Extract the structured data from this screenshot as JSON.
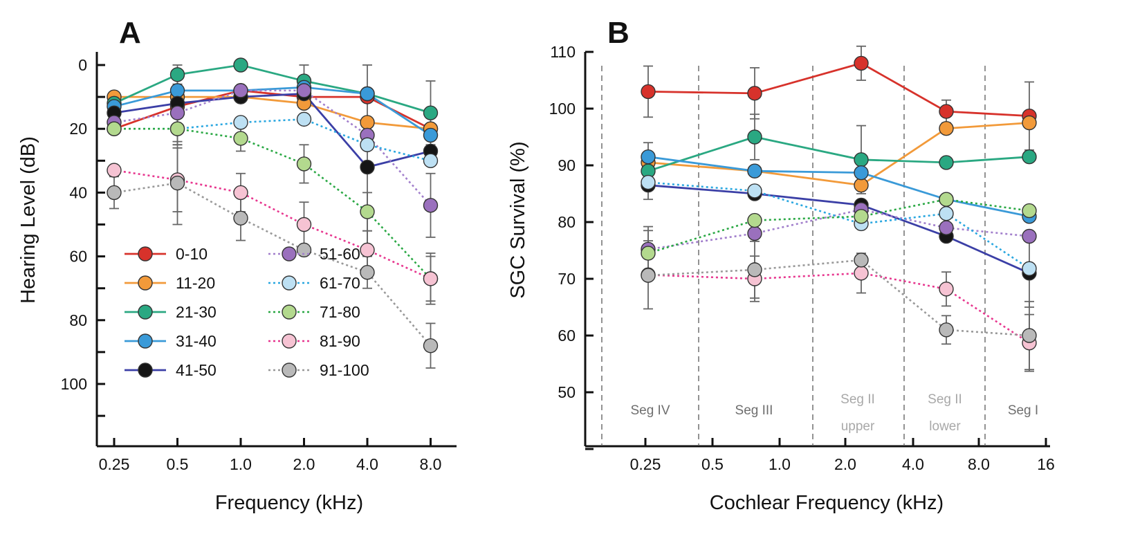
{
  "figure": {
    "colors": {
      "0-10": "#d7322b",
      "11-20": "#f29a3a",
      "21-30": "#2aa882",
      "31-40": "#3a9ad8",
      "41-50": "#151515",
      "51-60": "#9a70bd",
      "61-70": "#bde0f3",
      "71-80": "#b3d98e",
      "81-90": "#f6c3d3",
      "91-100": "#b9b9b9"
    },
    "line_colors": {
      "41-50": "#3b3fa6",
      "51-60": "#a27fcc",
      "61-70": "#2aa7e0",
      "71-80": "#2aa844",
      "81-90": "#e7378f",
      "91-100": "#999999"
    }
  },
  "chart_data": [
    {
      "panel": "A",
      "type": "line",
      "xlabel": "Frequency (kHz)",
      "ylabel": "Hearing Level (dB)",
      "x_ticks": [
        "0.25",
        "0.5",
        "1.0",
        "2.0",
        "4.0",
        "8.0"
      ],
      "y_ticks": [
        "0",
        "20",
        "40",
        "60",
        "80",
        "100"
      ],
      "ylim": [
        0,
        120
      ],
      "y_inverted": true,
      "legend": {
        "placement": "lower-left",
        "columns": 2
      },
      "series": [
        {
          "name": "0-10",
          "style": "solid",
          "values": [
            20,
            13,
            8,
            10,
            10,
            20
          ],
          "err": [
            0,
            0,
            0,
            0,
            0,
            0
          ]
        },
        {
          "name": "11-20",
          "style": "solid",
          "values": [
            10,
            10,
            10,
            12,
            18,
            20
          ],
          "err": [
            0,
            0,
            0,
            0,
            0,
            0
          ]
        },
        {
          "name": "21-30",
          "style": "solid",
          "values": [
            12,
            3,
            0,
            5,
            9,
            15
          ],
          "err": [
            0,
            3,
            0,
            5,
            0,
            10
          ]
        },
        {
          "name": "31-40",
          "style": "solid",
          "values": [
            13,
            8,
            8,
            7,
            9,
            22
          ],
          "err": [
            0,
            0,
            0,
            0,
            0,
            0
          ]
        },
        {
          "name": "41-50",
          "style": "solid",
          "values": [
            15,
            12,
            10,
            9,
            32,
            27
          ],
          "err": [
            0,
            0,
            0,
            0,
            32,
            0
          ]
        },
        {
          "name": "51-60",
          "style": "dotted",
          "values": [
            18,
            15,
            8,
            8,
            22,
            44
          ],
          "err": [
            0,
            0,
            0,
            0,
            0,
            10
          ]
        },
        {
          "name": "61-70",
          "style": "dotted",
          "values": [
            20,
            20,
            18,
            17,
            25,
            30
          ],
          "err": [
            0,
            5,
            0,
            0,
            0,
            0
          ]
        },
        {
          "name": "71-80",
          "style": "dotted",
          "values": [
            20,
            20,
            23,
            31,
            46,
            67
          ],
          "err": [
            0,
            5,
            4,
            6,
            6,
            7
          ]
        },
        {
          "name": "81-90",
          "style": "dotted",
          "values": [
            33,
            36,
            40,
            50,
            58,
            67
          ],
          "err": [
            0,
            10,
            6,
            7,
            6,
            8
          ]
        },
        {
          "name": "91-100",
          "style": "dotted",
          "values": [
            40,
            37,
            48,
            58,
            65,
            88
          ],
          "err": [
            5,
            13,
            7,
            0,
            5,
            7
          ]
        }
      ]
    },
    {
      "panel": "B",
      "type": "line",
      "xlabel": "Cochlear Frequency (kHz)",
      "ylabel": "SGC Survival (%)",
      "x_ticks": [
        "0.25",
        "0.5",
        "1.0",
        "2.0",
        "4.0",
        "8.0",
        "16"
      ],
      "y_ticks": [
        "50",
        "60",
        "70",
        "80",
        "90",
        "100",
        "110"
      ],
      "ylim": [
        40,
        110
      ],
      "segments": [
        {
          "name": "Seg IV",
          "line2": ""
        },
        {
          "name": "Seg III",
          "line2": ""
        },
        {
          "name": "Seg II",
          "line2": "upper"
        },
        {
          "name": "Seg II",
          "line2": "lower"
        },
        {
          "name": "Seg I",
          "line2": ""
        }
      ],
      "series": [
        {
          "name": "0-10",
          "style": "solid",
          "values": [
            103,
            102.7,
            108,
            99.5,
            98.7
          ],
          "err": [
            4.5,
            4.5,
            3,
            2,
            6
          ]
        },
        {
          "name": "11-20",
          "style": "solid",
          "values": [
            90.5,
            89,
            86.5,
            96.5,
            97.5
          ],
          "err": [
            0,
            0,
            0,
            0,
            0
          ]
        },
        {
          "name": "21-30",
          "style": "solid",
          "values": [
            89,
            95,
            91,
            90.5,
            91.5
          ],
          "err": [
            5,
            4,
            6,
            0,
            0
          ]
        },
        {
          "name": "31-40",
          "style": "solid",
          "values": [
            91.5,
            89,
            88.7,
            84,
            81
          ],
          "err": [
            0,
            0,
            0,
            0,
            0
          ]
        },
        {
          "name": "41-50",
          "style": "solid",
          "values": [
            86.5,
            85,
            83,
            77.5,
            71
          ],
          "err": [
            0,
            0,
            0,
            0,
            6
          ]
        },
        {
          "name": "51-60",
          "style": "dotted",
          "values": [
            75.2,
            78,
            82.2,
            79,
            77.5
          ],
          "err": [
            4,
            0,
            0,
            0,
            0
          ]
        },
        {
          "name": "61-70",
          "style": "dotted",
          "values": [
            87,
            85.5,
            79.7,
            81.5,
            71.8
          ],
          "err": [
            0,
            0,
            0,
            0,
            0
          ]
        },
        {
          "name": "71-80",
          "style": "dotted",
          "values": [
            74.5,
            80.3,
            81,
            84,
            82
          ],
          "err": [
            4,
            0,
            0,
            0,
            0
          ]
        },
        {
          "name": "81-90",
          "style": "dotted",
          "values": [
            70.7,
            70,
            71,
            68.2,
            58.7
          ],
          "err": [
            6,
            4,
            3.5,
            3,
            5
          ]
        },
        {
          "name": "91-100",
          "style": "dotted",
          "values": [
            70.6,
            71.6,
            73.3,
            61,
            60
          ],
          "err": [
            0,
            5,
            0,
            2.5,
            6
          ]
        }
      ]
    }
  ]
}
